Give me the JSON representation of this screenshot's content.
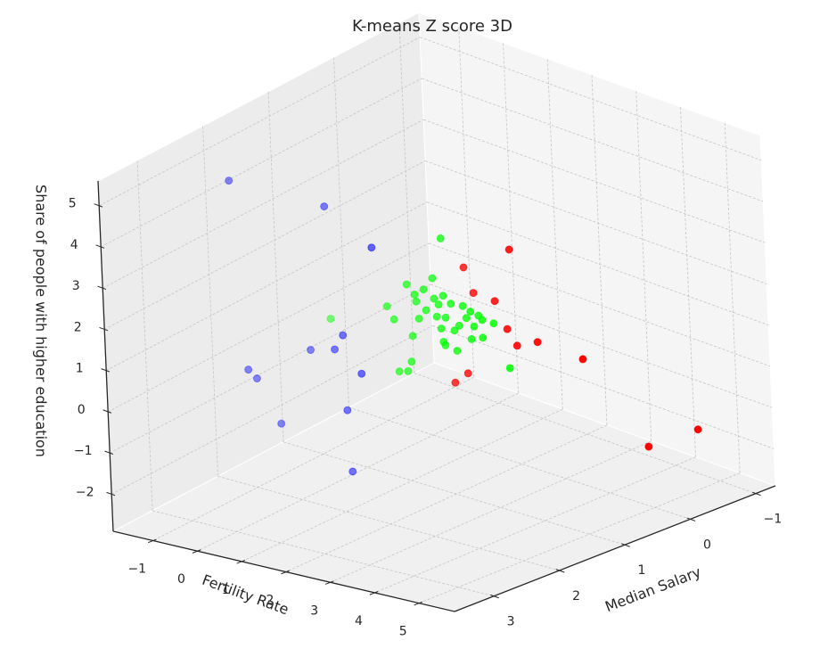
{
  "chart_data": {
    "type": "scatter3d",
    "title": "K-means Z score 3D",
    "xlabel": "Fertility Rate",
    "ylabel": "Median Salary",
    "zlabel": "Share of people with higher education",
    "xlim": [
      -1.9,
      5.8
    ],
    "ylim": [
      -1.3,
      3.6
    ],
    "zlim": [
      -2.9,
      5.6
    ],
    "xticks": [
      {
        "value": -1,
        "label": "−1"
      },
      0,
      1,
      2,
      3,
      4,
      5
    ],
    "yticks": [
      {
        "value": -1,
        "label": "−1"
      },
      0,
      1,
      2,
      3
    ],
    "zticks": [
      {
        "value": -2,
        "label": "−2"
      },
      {
        "value": -1,
        "label": "−1"
      },
      0,
      1,
      2,
      3,
      4,
      5
    ],
    "grid": true,
    "series": [
      {
        "color": "#0000ff",
        "x": [
          -0.78,
          1.37,
          2.41,
          1.67,
          0.92,
          1.47,
          -0.52,
          -0.33,
          2.06,
          1.7,
          0.18,
          1.76
        ],
        "y": [
          2.38,
          2.38,
          2.38,
          2.38,
          2.38,
          2.38,
          2.38,
          2.38,
          2.38,
          2.38,
          2.38,
          2.38
        ],
        "z": [
          4.91,
          4.9,
          4.2,
          1.86,
          1.29,
          1.46,
          0.4,
          0.24,
          1.04,
          0.05,
          -0.71,
          -1.42
        ]
      },
      {
        "color": "#ff0000",
        "x": [
          2.18,
          1.12,
          1.32,
          1.8,
          2.06,
          2.27,
          2.74,
          3.76,
          1.12,
          0.82,
          5.18,
          4.83
        ],
        "y": [
          0.17,
          0.17,
          0.17,
          0.17,
          0.17,
          0.17,
          0.17,
          0.17,
          0.17,
          0.17,
          0.17,
          -0.81
        ],
        "z": [
          2.49,
          1.69,
          1.14,
          1.11,
          0.52,
          0.19,
          0.44,
          0.38,
          -0.88,
          -1.21,
          -1.25,
          -1.59
        ]
      },
      {
        "color": "#00ff00",
        "x": [
          2.12,
          1.89,
          1.3,
          1.68,
          2.12,
          1.5,
          1.91,
          0.83,
          2.29,
          1.72,
          2.56,
          1.96,
          2.16,
          1.55,
          2.73,
          2.99,
          0.98,
          -0.47,
          2.46,
          2.8,
          3.25,
          1.39,
          2.05,
          2.13,
          2.09,
          2.35,
          2.99,
          2.73,
          1.34,
          1.05,
          1.25,
          2.39,
          3.58,
          2.01,
          2.91,
          2.63,
          1.47
        ],
        "y": [
          1.15,
          1.15,
          1.15,
          1.15,
          1.15,
          1.15,
          1.15,
          1.15,
          1.15,
          1.15,
          1.15,
          1.15,
          1.15,
          1.15,
          1.15,
          1.15,
          1.15,
          1.15,
          1.15,
          1.15,
          1.15,
          1.15,
          1.15,
          1.15,
          1.15,
          1.15,
          1.15,
          1.15,
          1.15,
          1.15,
          1.15,
          1.15,
          1.15,
          1.15,
          1.15,
          1.15,
          1.15
        ],
        "z": [
          3.45,
          2.41,
          2.07,
          2.07,
          2.06,
          1.72,
          1.92,
          1.39,
          1.92,
          1.58,
          1.95,
          1.5,
          1.54,
          1.32,
          1.87,
          1.75,
          1.12,
          0.67,
          1.44,
          1.53,
          1.75,
          0.85,
          1.24,
          0.86,
          0.93,
          1.29,
          1.32,
          1.2,
          0.21,
          -0.12,
          -0.05,
          0.81,
          0.77,
          1.81,
          1.83,
          1.68,
          1.88
        ]
      }
    ]
  }
}
